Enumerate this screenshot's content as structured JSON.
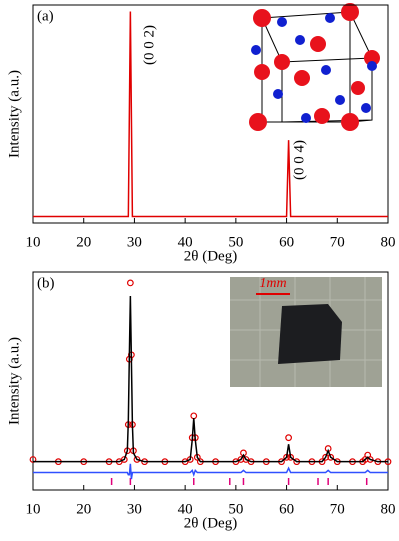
{
  "chart_data": [
    {
      "type": "line",
      "panel_label": "(a)",
      "xlabel": "2θ (Deg)",
      "ylabel": "Intensity (a.u.)",
      "xlim": [
        10,
        80
      ],
      "xticks": [
        10,
        20,
        30,
        40,
        50,
        60,
        70,
        80
      ],
      "ylim": [
        0,
        100
      ],
      "annotations": [
        "(0 0 2)",
        "(0 0 4)"
      ],
      "x": [
        10,
        28.8,
        29.2,
        29.6,
        60,
        60.4,
        60.8,
        80
      ],
      "series": [
        {
          "color": "#e00000",
          "style": "line",
          "values": [
            3,
            3,
            97,
            3,
            3,
            38,
            3,
            3
          ]
        }
      ]
    },
    {
      "type": "line",
      "panel_label": "(b)",
      "xlabel": "2θ (Deg)",
      "ylabel": "Intensity (a.u.)",
      "xlim": [
        10,
        80
      ],
      "xticks": [
        10,
        20,
        30,
        40,
        50,
        60,
        70,
        80
      ],
      "ylim": [
        0,
        100
      ],
      "inset_label": "1mm",
      "x": [
        10,
        15,
        20,
        25,
        27,
        28,
        28.6,
        28.8,
        29,
        29.2,
        29.4,
        29.6,
        29.8,
        30.5,
        32,
        36,
        40,
        41,
        41.4,
        41.7,
        42,
        42.4,
        43,
        46,
        50,
        51,
        51.5,
        52,
        53,
        56,
        59,
        60,
        60.4,
        60.8,
        62,
        65,
        67,
        67.7,
        68.2,
        68.7,
        70,
        73,
        75,
        75.5,
        76,
        76.5,
        78,
        80
      ],
      "series": [
        {
          "color": "#e00000",
          "style": "circles",
          "values": [
            14,
            13,
            13,
            13,
            13,
            14,
            18,
            30,
            60,
            95,
            62,
            30,
            18,
            14,
            13,
            13,
            13,
            14,
            24,
            34,
            24,
            15,
            13,
            13,
            13,
            14,
            17,
            14,
            13,
            13,
            13,
            15,
            24,
            15,
            13,
            13,
            13,
            15,
            19,
            15,
            13,
            13,
            13,
            14,
            16,
            14,
            13,
            13
          ]
        },
        {
          "color": "#000000",
          "style": "line",
          "values": [
            13,
            13,
            13,
            13,
            13,
            14,
            18,
            32,
            62,
            89,
            60,
            30,
            17,
            14,
            13,
            13,
            13,
            14,
            23,
            33,
            23,
            15,
            13,
            13,
            13,
            14,
            16,
            14,
            13,
            13,
            13,
            15,
            21,
            15,
            13,
            13,
            13,
            15,
            18,
            15,
            13,
            13,
            13,
            14,
            15,
            14,
            13,
            13
          ]
        },
        {
          "color": "#3050ff",
          "style": "line",
          "values": [
            8,
            8,
            8,
            8,
            8,
            8,
            8,
            7,
            7,
            12,
            5,
            8,
            8,
            8,
            8,
            8,
            8,
            8,
            9,
            7,
            9,
            8,
            8,
            8,
            8,
            8,
            9,
            8,
            8,
            8,
            8,
            8,
            10,
            8,
            8,
            8,
            8,
            8,
            9,
            8,
            8,
            8,
            8,
            8,
            9,
            8,
            8,
            8
          ]
        }
      ],
      "bragg_color": "#e0007a",
      "bragg_positions": [
        25.5,
        29.2,
        41.7,
        48.8,
        51.5,
        60.4,
        66.2,
        68.2,
        75.8
      ]
    }
  ]
}
